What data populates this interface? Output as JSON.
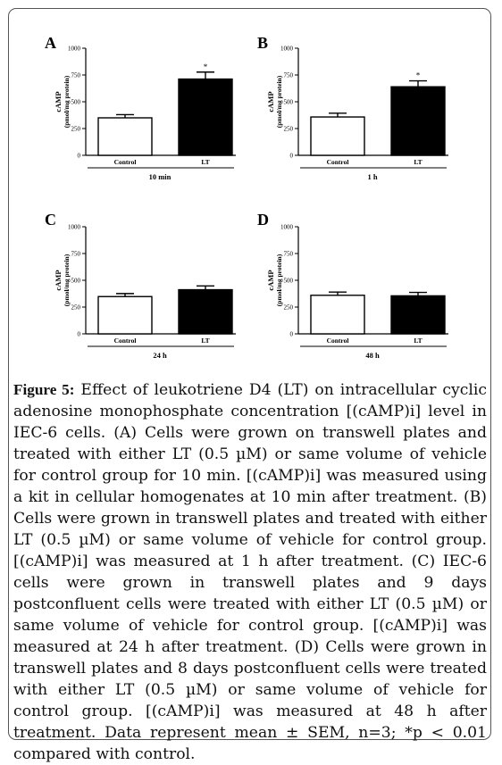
{
  "chart_data": [
    {
      "type": "bar",
      "panel_label": "A",
      "categories": [
        "Control",
        "LT"
      ],
      "values": [
        350,
        712
      ],
      "errors": [
        30,
        65
      ],
      "bar_colors": [
        "#ffffff",
        "#000000"
      ],
      "significance": [
        "",
        "*"
      ],
      "ylabel": "cAMP",
      "ylabel_unit": "(pmol/mg protein)",
      "xlabel": "10 min",
      "ylim": [
        0,
        1000
      ],
      "yticks": [
        "0",
        "250",
        "500",
        "750",
        "1000"
      ]
    },
    {
      "type": "bar",
      "panel_label": "B",
      "categories": [
        "Control",
        "LT"
      ],
      "values": [
        358,
        640
      ],
      "errors": [
        35,
        55
      ],
      "bar_colors": [
        "#ffffff",
        "#000000"
      ],
      "significance": [
        "",
        "*"
      ],
      "ylabel": "cAMP",
      "ylabel_unit": "(pmol/mg protein)",
      "xlabel": "1 h",
      "ylim": [
        0,
        1000
      ],
      "yticks": [
        "0",
        "250",
        "500",
        "750",
        "1000"
      ]
    },
    {
      "type": "bar",
      "panel_label": "C",
      "categories": [
        "Control",
        "LT"
      ],
      "values": [
        348,
        412
      ],
      "errors": [
        28,
        35
      ],
      "bar_colors": [
        "#ffffff",
        "#000000"
      ],
      "significance": [
        "",
        ""
      ],
      "ylabel": "cAMP",
      "ylabel_unit": "(pmol/mg protein)",
      "xlabel": "24 h",
      "ylim": [
        0,
        1000
      ],
      "yticks": [
        "0",
        "250",
        "500",
        "750",
        "1000"
      ]
    },
    {
      "type": "bar",
      "panel_label": "D",
      "categories": [
        "Control",
        "LT"
      ],
      "values": [
        360,
        355
      ],
      "errors": [
        30,
        32
      ],
      "bar_colors": [
        "#ffffff",
        "#000000"
      ],
      "significance": [
        "",
        ""
      ],
      "ylabel": "cAMP",
      "ylabel_unit": "(pmol/mg protein)",
      "xlabel": "48 h",
      "ylim": [
        0,
        1000
      ],
      "yticks": [
        "0",
        "250",
        "500",
        "750",
        "1000"
      ]
    }
  ],
  "caption": {
    "label": "Figure 5:",
    "text": "Effect of leukotriene D4 (LT) on intracellular cyclic adenosine monophosphate concentration [(cAMP)i] level in IEC-6 cells. (A) Cells were grown on transwell plates and treated with either LT (0.5 µM) or same volume of vehicle for control group for 10 min. [(cAMP)i] was measured using a kit in cellular homogenates at 10 min after treatment. (B) Cells were grown in transwell plates and treated with either LT (0.5 µM) or same volume of vehicle for control group. [(cAMP)i] was measured at 1 h after treatment. (C) IEC-6 cells were grown in transwell plates and 9 days postconfluent cells were treated with either LT (0.5 µM) or same volume of vehicle for control group. [(cAMP)i] was measured at 24 h after treatment. (D) Cells were grown in transwell plates and 8 days postconfluent cells were treated with either LT (0.5 µM) or same volume of vehicle for control group. [(cAMP)i] was measured at 48 h after treatment. Data represent mean ± SEM, n=3; *p < 0.01 compared with control."
  }
}
